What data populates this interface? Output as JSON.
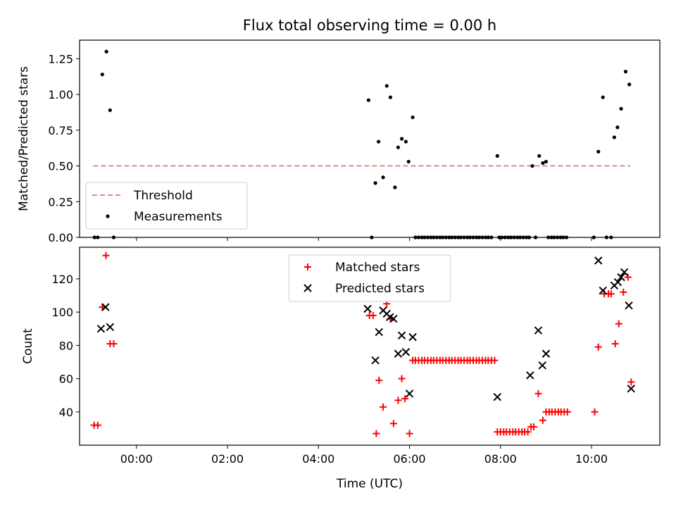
{
  "figure": {
    "title": "Flux total observing time = 0.00 h",
    "xlabel": "Time (UTC)"
  },
  "colors": {
    "threshold": "#f08080",
    "measurements": "#000000",
    "matched": "#ff0000",
    "predicted": "#000000"
  },
  "chart_data": [
    {
      "type": "scatter",
      "name": "ratio-panel",
      "ylabel": "Matched/Predicted stars",
      "xlim": [
        -1.25,
        11.5
      ],
      "ylim": [
        0,
        1.38
      ],
      "xticks": [
        0,
        2,
        4,
        6,
        8,
        10
      ],
      "yticks": [
        0.0,
        0.25,
        0.5,
        0.75,
        1.0,
        1.25
      ],
      "ytick_labels": [
        "0.00",
        "0.25",
        "0.50",
        "0.75",
        "1.00",
        "1.25"
      ],
      "legend_position": "lower-left",
      "series": [
        {
          "name": "Threshold",
          "kind": "hline",
          "y": 0.5,
          "x": [
            -0.95,
            10.85
          ]
        },
        {
          "name": "Measurements",
          "kind": "points",
          "points": [
            [
              -0.92,
              0
            ],
            [
              -0.85,
              0
            ],
            [
              -0.75,
              1.14
            ],
            [
              -0.66,
              1.3
            ],
            [
              -0.58,
              0.89
            ],
            [
              -0.5,
              0
            ],
            [
              5.1,
              0.96
            ],
            [
              5.17,
              0
            ],
            [
              5.25,
              0.38
            ],
            [
              5.32,
              0.67
            ],
            [
              5.42,
              0.42
            ],
            [
              5.5,
              1.06
            ],
            [
              5.58,
              0.98
            ],
            [
              5.68,
              0.35
            ],
            [
              5.75,
              0.63
            ],
            [
              5.83,
              0.69
            ],
            [
              5.92,
              0.67
            ],
            [
              5.98,
              0.53
            ],
            [
              6.07,
              0.84
            ],
            [
              6.13,
              0
            ],
            [
              6.2,
              0
            ],
            [
              6.27,
              0
            ],
            [
              6.33,
              0
            ],
            [
              6.4,
              0
            ],
            [
              6.47,
              0
            ],
            [
              6.53,
              0
            ],
            [
              6.6,
              0
            ],
            [
              6.67,
              0
            ],
            [
              6.73,
              0
            ],
            [
              6.8,
              0
            ],
            [
              6.87,
              0
            ],
            [
              6.93,
              0
            ],
            [
              7.0,
              0
            ],
            [
              7.07,
              0
            ],
            [
              7.13,
              0
            ],
            [
              7.2,
              0
            ],
            [
              7.27,
              0
            ],
            [
              7.33,
              0
            ],
            [
              7.4,
              0
            ],
            [
              7.47,
              0
            ],
            [
              7.53,
              0
            ],
            [
              7.6,
              0
            ],
            [
              7.67,
              0
            ],
            [
              7.73,
              0
            ],
            [
              7.8,
              0
            ],
            [
              7.93,
              0.57
            ],
            [
              7.97,
              0
            ],
            [
              8.03,
              0
            ],
            [
              8.1,
              0
            ],
            [
              8.17,
              0
            ],
            [
              8.23,
              0
            ],
            [
              8.3,
              0
            ],
            [
              8.37,
              0
            ],
            [
              8.43,
              0
            ],
            [
              8.5,
              0
            ],
            [
              8.57,
              0
            ],
            [
              8.63,
              0
            ],
            [
              8.7,
              0.5
            ],
            [
              8.77,
              0
            ],
            [
              8.85,
              0.57
            ],
            [
              8.93,
              0.52
            ],
            [
              9.0,
              0.53
            ],
            [
              9.05,
              0
            ],
            [
              9.12,
              0
            ],
            [
              9.18,
              0
            ],
            [
              9.25,
              0
            ],
            [
              9.32,
              0
            ],
            [
              9.38,
              0
            ],
            [
              9.45,
              0
            ],
            [
              10.05,
              0
            ],
            [
              10.15,
              0.6
            ],
            [
              10.25,
              0.98
            ],
            [
              10.33,
              0
            ],
            [
              10.43,
              0
            ],
            [
              10.5,
              0.7
            ],
            [
              10.57,
              0.77
            ],
            [
              10.65,
              0.9
            ],
            [
              10.75,
              1.16
            ],
            [
              10.83,
              1.07
            ]
          ]
        }
      ]
    },
    {
      "type": "scatter",
      "name": "count-panel",
      "ylabel": "Count",
      "xlim": [
        -1.25,
        11.5
      ],
      "ylim": [
        20,
        139
      ],
      "xticks": [
        0,
        2,
        4,
        6,
        8,
        10
      ],
      "xtick_labels": [
        "00:00",
        "02:00",
        "04:00",
        "06:00",
        "08:00",
        "10:00"
      ],
      "yticks": [
        40,
        60,
        80,
        100,
        120
      ],
      "ytick_labels": [
        "40",
        "60",
        "80",
        "100",
        "120"
      ],
      "legend_position": "top-center",
      "series": [
        {
          "name": "Matched stars",
          "marker": "plus",
          "points": [
            [
              -0.93,
              32
            ],
            [
              -0.85,
              32
            ],
            [
              -0.75,
              103
            ],
            [
              -0.67,
              134
            ],
            [
              -0.58,
              81
            ],
            [
              -0.5,
              81
            ],
            [
              5.12,
              98
            ],
            [
              5.2,
              98
            ],
            [
              5.27,
              27
            ],
            [
              5.33,
              59
            ],
            [
              5.42,
              43
            ],
            [
              5.5,
              105
            ],
            [
              5.58,
              96
            ],
            [
              5.65,
              33
            ],
            [
              5.75,
              47
            ],
            [
              5.83,
              60
            ],
            [
              5.9,
              48
            ],
            [
              6.0,
              27
            ],
            [
              6.07,
              71
            ],
            [
              6.13,
              71
            ],
            [
              6.2,
              71
            ],
            [
              6.27,
              71
            ],
            [
              6.33,
              71
            ],
            [
              6.4,
              71
            ],
            [
              6.47,
              71
            ],
            [
              6.53,
              71
            ],
            [
              6.6,
              71
            ],
            [
              6.67,
              71
            ],
            [
              6.73,
              71
            ],
            [
              6.8,
              71
            ],
            [
              6.87,
              71
            ],
            [
              6.93,
              71
            ],
            [
              7.0,
              71
            ],
            [
              7.07,
              71
            ],
            [
              7.13,
              71
            ],
            [
              7.2,
              71
            ],
            [
              7.27,
              71
            ],
            [
              7.33,
              71
            ],
            [
              7.4,
              71
            ],
            [
              7.47,
              71
            ],
            [
              7.53,
              71
            ],
            [
              7.6,
              71
            ],
            [
              7.67,
              71
            ],
            [
              7.73,
              71
            ],
            [
              7.8,
              71
            ],
            [
              7.87,
              71
            ],
            [
              7.93,
              28
            ],
            [
              8.0,
              28
            ],
            [
              8.07,
              28
            ],
            [
              8.13,
              28
            ],
            [
              8.2,
              28
            ],
            [
              8.27,
              28
            ],
            [
              8.33,
              28
            ],
            [
              8.4,
              28
            ],
            [
              8.47,
              28
            ],
            [
              8.53,
              28
            ],
            [
              8.6,
              28
            ],
            [
              8.67,
              31
            ],
            [
              8.73,
              31
            ],
            [
              8.83,
              51
            ],
            [
              8.93,
              35
            ],
            [
              9.0,
              40
            ],
            [
              9.07,
              40
            ],
            [
              9.13,
              40
            ],
            [
              9.2,
              40
            ],
            [
              9.27,
              40
            ],
            [
              9.33,
              40
            ],
            [
              9.4,
              40
            ],
            [
              9.47,
              40
            ],
            [
              10.07,
              40
            ],
            [
              10.15,
              79
            ],
            [
              10.28,
              111
            ],
            [
              10.37,
              111
            ],
            [
              10.43,
              111
            ],
            [
              10.52,
              81
            ],
            [
              10.6,
              93
            ],
            [
              10.7,
              112
            ],
            [
              10.8,
              121
            ],
            [
              10.87,
              58
            ]
          ]
        },
        {
          "name": "Predicted stars",
          "marker": "x",
          "points": [
            [
              -0.78,
              90
            ],
            [
              -0.68,
              103
            ],
            [
              -0.58,
              91
            ],
            [
              5.08,
              102
            ],
            [
              5.25,
              71
            ],
            [
              5.33,
              88
            ],
            [
              5.42,
              101
            ],
            [
              5.5,
              99
            ],
            [
              5.57,
              97
            ],
            [
              5.65,
              96
            ],
            [
              5.75,
              75
            ],
            [
              5.83,
              86
            ],
            [
              5.92,
              76
            ],
            [
              6.0,
              51
            ],
            [
              6.07,
              85
            ],
            [
              7.93,
              49
            ],
            [
              8.65,
              62
            ],
            [
              8.83,
              89
            ],
            [
              8.92,
              68
            ],
            [
              9.0,
              75
            ],
            [
              10.15,
              131
            ],
            [
              10.25,
              113
            ],
            [
              10.5,
              116
            ],
            [
              10.58,
              118
            ],
            [
              10.65,
              121
            ],
            [
              10.72,
              124
            ],
            [
              10.82,
              104
            ],
            [
              10.87,
              54
            ]
          ]
        }
      ]
    }
  ]
}
